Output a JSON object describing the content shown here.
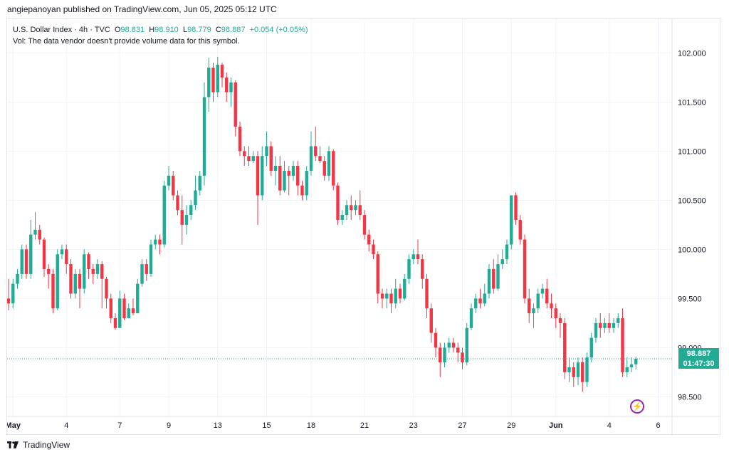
{
  "header": {
    "published_line": "angiepanoyan published on TradingView.com, Jun 05, 2025 05:12 UTC"
  },
  "legend": {
    "symbol": "U.S. Dollar Index · 4h · TVC",
    "o_label": "O",
    "o_value": "98.831",
    "h_label": "H",
    "h_value": "98.910",
    "l_label": "L",
    "l_value": "98.779",
    "c_label": "C",
    "c_value": "98.887",
    "change": "+0.054 (+0.05%)",
    "vol_note": "Vol: The data vendor doesn't provide volume data for this symbol."
  },
  "price_tag": {
    "price": "98.887",
    "countdown": "01:47:30"
  },
  "footer": {
    "brand": "TradingView"
  },
  "colors": {
    "up": "#22ab94",
    "down": "#f23645",
    "grid": "#f0f3fa",
    "axis_text": "#131722",
    "last_price_line": "#22ab94"
  },
  "chart_data": {
    "type": "candlestick",
    "timeframe": "4h",
    "ylim": [
      98.3,
      102.35
    ],
    "y_ticks": [
      "102.000",
      "101.500",
      "101.000",
      "100.500",
      "100.000",
      "99.500",
      "99.000",
      "98.500"
    ],
    "y_tick_values": [
      102.0,
      101.5,
      101.0,
      100.5,
      100.0,
      99.5,
      99.0,
      98.5
    ],
    "x_ticks": [
      {
        "label": "May",
        "bar": 1
      },
      {
        "label": "4",
        "bar": 13
      },
      {
        "label": "7",
        "bar": 25
      },
      {
        "label": "9",
        "bar": 36
      },
      {
        "label": "13",
        "bar": 47
      },
      {
        "label": "15",
        "bar": 58
      },
      {
        "label": "18",
        "bar": 68
      },
      {
        "label": "21",
        "bar": 80
      },
      {
        "label": "23",
        "bar": 91
      },
      {
        "label": "27",
        "bar": 102
      },
      {
        "label": "29",
        "bar": 113
      },
      {
        "label": "Jun",
        "bar": 123
      },
      {
        "label": "4",
        "bar": 135
      },
      {
        "label": "6",
        "bar": 146
      }
    ],
    "last_price": 98.887,
    "candles": [
      [
        99.5,
        99.45,
        99.7,
        99.38
      ],
      [
        99.45,
        99.65,
        99.7,
        99.4
      ],
      [
        99.65,
        99.75,
        99.8,
        99.6
      ],
      [
        99.75,
        100.0,
        100.05,
        99.7
      ],
      [
        100.0,
        99.75,
        100.05,
        99.7
      ],
      [
        99.75,
        100.15,
        100.3,
        99.7
      ],
      [
        100.15,
        100.2,
        100.38,
        100.1
      ],
      [
        100.2,
        100.1,
        100.25,
        100.05
      ],
      [
        100.1,
        99.8,
        100.12,
        99.72
      ],
      [
        99.8,
        99.75,
        99.85,
        99.6
      ],
      [
        99.75,
        99.4,
        99.8,
        99.35
      ],
      [
        99.4,
        99.95,
        100.0,
        99.38
      ],
      [
        99.95,
        100.0,
        100.05,
        99.9
      ],
      [
        100.0,
        99.85,
        100.05,
        99.75
      ],
      [
        99.85,
        99.55,
        99.9,
        99.5
      ],
      [
        99.55,
        99.75,
        99.8,
        99.5
      ],
      [
        99.75,
        99.6,
        99.8,
        99.4
      ],
      [
        99.6,
        99.95,
        100.0,
        99.55
      ],
      [
        99.95,
        99.8,
        99.97,
        99.7
      ],
      [
        99.8,
        99.75,
        99.85,
        99.65
      ],
      [
        99.75,
        99.85,
        99.9,
        99.7
      ],
      [
        99.85,
        99.7,
        99.88,
        99.4
      ],
      [
        99.7,
        99.5,
        99.72,
        99.4
      ],
      [
        99.5,
        99.3,
        99.55,
        99.25
      ],
      [
        99.3,
        99.2,
        99.35,
        99.18
      ],
      [
        99.2,
        99.5,
        99.58,
        99.25
      ],
      [
        99.5,
        99.3,
        99.55,
        99.28
      ],
      [
        99.3,
        99.4,
        99.45,
        99.32
      ],
      [
        99.4,
        99.35,
        99.5,
        99.33
      ],
      [
        99.35,
        99.65,
        99.7,
        99.38
      ],
      [
        99.65,
        99.85,
        99.9,
        99.62
      ],
      [
        99.85,
        99.75,
        99.9,
        99.68
      ],
      [
        99.75,
        100.05,
        100.1,
        99.72
      ],
      [
        100.05,
        100.1,
        100.15,
        100.0
      ],
      [
        100.1,
        100.05,
        100.15,
        99.95
      ],
      [
        100.05,
        100.65,
        100.7,
        100.02
      ],
      [
        100.65,
        100.75,
        100.85,
        100.6
      ],
      [
        100.75,
        100.55,
        100.8,
        100.5
      ],
      [
        100.55,
        100.4,
        100.6,
        100.35
      ],
      [
        100.4,
        100.25,
        100.55,
        100.05
      ],
      [
        100.25,
        100.35,
        100.45,
        100.15
      ],
      [
        100.35,
        100.45,
        100.5,
        100.3
      ],
      [
        100.45,
        100.6,
        100.75,
        100.4
      ],
      [
        100.6,
        100.75,
        100.8,
        100.55
      ],
      [
        100.75,
        101.55,
        101.7,
        100.65
      ],
      [
        101.55,
        101.85,
        101.95,
        101.4
      ],
      [
        101.85,
        101.6,
        101.9,
        101.5
      ],
      [
        101.6,
        101.88,
        101.96,
        101.55
      ],
      [
        101.88,
        101.75,
        101.9,
        101.65
      ],
      [
        101.75,
        101.6,
        101.8,
        101.5
      ],
      [
        101.6,
        101.7,
        101.75,
        101.45
      ],
      [
        101.7,
        101.25,
        101.72,
        101.15
      ],
      [
        101.25,
        101.0,
        101.3,
        100.95
      ],
      [
        101.0,
        100.95,
        101.05,
        100.85
      ],
      [
        100.95,
        100.9,
        101.05,
        100.85
      ],
      [
        100.9,
        100.95,
        101.0,
        100.88
      ],
      [
        100.95,
        100.55,
        101.0,
        100.25
      ],
      [
        100.55,
        100.95,
        101.05,
        100.5
      ],
      [
        100.95,
        101.05,
        101.2,
        100.85
      ],
      [
        101.05,
        100.8,
        101.1,
        100.75
      ],
      [
        100.8,
        100.85,
        100.95,
        100.65
      ],
      [
        100.85,
        100.6,
        100.95,
        100.55
      ],
      [
        100.6,
        100.8,
        100.9,
        100.58
      ],
      [
        100.8,
        100.75,
        100.85,
        100.55
      ],
      [
        100.75,
        100.85,
        100.9,
        100.7
      ],
      [
        100.85,
        100.65,
        100.9,
        100.55
      ],
      [
        100.65,
        100.55,
        100.7,
        100.5
      ],
      [
        100.55,
        100.8,
        100.85,
        100.5
      ],
      [
        100.8,
        101.05,
        101.2,
        100.75
      ],
      [
        101.05,
        100.95,
        101.25,
        100.9
      ],
      [
        100.95,
        100.9,
        101.05,
        100.88
      ],
      [
        100.9,
        100.75,
        100.95,
        100.7
      ],
      [
        100.75,
        101.0,
        101.05,
        100.7
      ],
      [
        101.0,
        100.65,
        101.02,
        100.6
      ],
      [
        100.65,
        100.3,
        100.68,
        100.25
      ],
      [
        100.3,
        100.35,
        100.4,
        100.25
      ],
      [
        100.35,
        100.45,
        100.5,
        100.3
      ],
      [
        100.45,
        100.4,
        100.55,
        100.3
      ],
      [
        100.4,
        100.45,
        100.5,
        100.35
      ],
      [
        100.45,
        100.35,
        100.6,
        100.3
      ],
      [
        100.35,
        100.15,
        100.4,
        100.1
      ],
      [
        100.15,
        100.05,
        100.2,
        99.98
      ],
      [
        100.05,
        99.95,
        100.1,
        99.9
      ],
      [
        99.95,
        99.55,
        99.98,
        99.45
      ],
      [
        99.55,
        99.5,
        99.6,
        99.4
      ],
      [
        99.5,
        99.55,
        99.6,
        99.4
      ],
      [
        99.55,
        99.45,
        99.6,
        99.35
      ],
      [
        99.45,
        99.6,
        99.7,
        99.4
      ],
      [
        99.6,
        99.5,
        99.65,
        99.45
      ],
      [
        99.5,
        99.7,
        99.75,
        99.48
      ],
      [
        99.7,
        99.9,
        99.95,
        99.65
      ],
      [
        99.9,
        99.95,
        100.0,
        99.85
      ],
      [
        99.95,
        99.9,
        100.1,
        99.85
      ],
      [
        99.9,
        99.7,
        99.95,
        99.6
      ],
      [
        99.7,
        99.4,
        99.75,
        99.3
      ],
      [
        99.4,
        99.15,
        99.45,
        99.05
      ],
      [
        99.15,
        99.0,
        99.2,
        98.9
      ],
      [
        99.0,
        98.85,
        99.05,
        98.7
      ],
      [
        98.85,
        99.0,
        99.05,
        98.8
      ],
      [
        99.0,
        99.05,
        99.1,
        98.95
      ],
      [
        99.05,
        99.0,
        99.1,
        98.95
      ],
      [
        99.0,
        98.95,
        99.05,
        98.85
      ],
      [
        98.95,
        98.85,
        99.0,
        98.78
      ],
      [
        98.85,
        99.2,
        99.25,
        98.82
      ],
      [
        99.2,
        99.4,
        99.45,
        99.18
      ],
      [
        99.4,
        99.5,
        99.55,
        99.35
      ],
      [
        99.5,
        99.45,
        99.6,
        99.4
      ],
      [
        99.45,
        99.55,
        99.65,
        99.42
      ],
      [
        99.55,
        99.8,
        99.85,
        99.5
      ],
      [
        99.8,
        99.6,
        99.9,
        99.55
      ],
      [
        99.6,
        99.85,
        99.95,
        99.58
      ],
      [
        99.85,
        99.9,
        100.0,
        99.8
      ],
      [
        99.9,
        100.05,
        100.1,
        99.85
      ],
      [
        100.05,
        100.55,
        100.55,
        100.0
      ],
      [
        100.55,
        100.3,
        100.58,
        100.25
      ],
      [
        100.3,
        100.1,
        100.35,
        100.05
      ],
      [
        100.1,
        99.5,
        100.15,
        99.45
      ],
      [
        99.5,
        99.35,
        99.6,
        99.25
      ],
      [
        99.35,
        99.4,
        99.45,
        99.2
      ],
      [
        99.4,
        99.55,
        99.6,
        99.35
      ],
      [
        99.55,
        99.6,
        99.65,
        99.5
      ],
      [
        99.6,
        99.45,
        99.7,
        99.4
      ],
      [
        99.45,
        99.4,
        99.55,
        99.3
      ],
      [
        99.4,
        99.3,
        99.45,
        99.2
      ],
      [
        99.3,
        99.25,
        99.35,
        99.1
      ],
      [
        99.25,
        98.75,
        99.3,
        98.68
      ],
      [
        98.75,
        98.8,
        98.9,
        98.65
      ],
      [
        98.8,
        98.7,
        98.85,
        98.6
      ],
      [
        98.7,
        98.85,
        98.9,
        98.62
      ],
      [
        98.85,
        98.65,
        98.9,
        98.55
      ],
      [
        98.65,
        98.9,
        98.95,
        98.6
      ],
      [
        98.9,
        99.1,
        99.15,
        98.85
      ],
      [
        99.1,
        99.25,
        99.3,
        99.05
      ],
      [
        99.25,
        99.2,
        99.35,
        99.1
      ],
      [
        99.2,
        99.25,
        99.3,
        99.15
      ],
      [
        99.25,
        99.2,
        99.35,
        99.15
      ],
      [
        99.2,
        99.25,
        99.3,
        99.15
      ],
      [
        99.25,
        99.3,
        99.35,
        99.2
      ],
      [
        99.3,
        98.75,
        99.4,
        98.7
      ],
      [
        98.75,
        98.8,
        98.9,
        98.7
      ],
      [
        98.8,
        98.83,
        98.9,
        98.75
      ],
      [
        98.83,
        98.887,
        98.91,
        98.779
      ]
    ]
  }
}
